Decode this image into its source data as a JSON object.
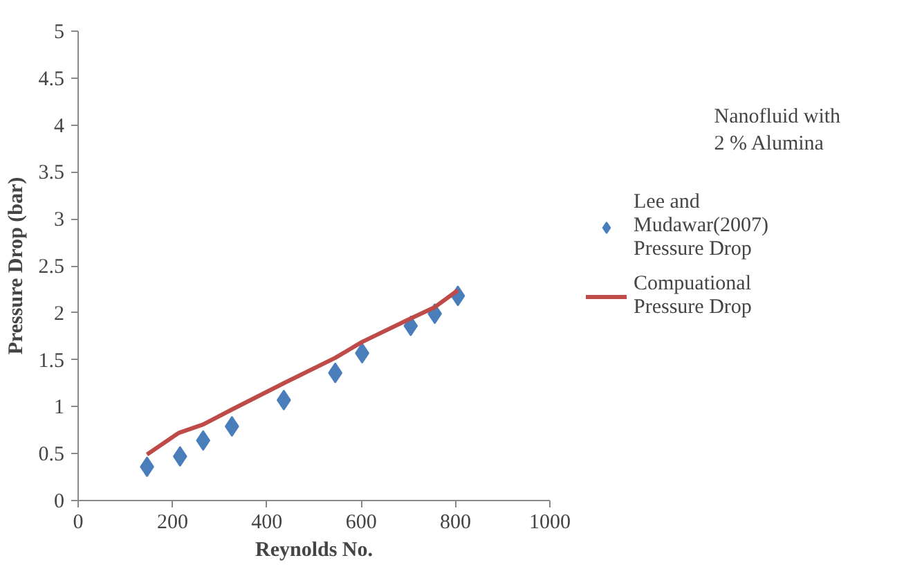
{
  "chart_data": {
    "type": "scatter",
    "xlabel": "Reynolds No.",
    "ylabel": "Pressure Drop (bar)",
    "annotations": [
      "Nanofluid with 2 % Alumina"
    ],
    "series": [
      {
        "name": "Lee and Mudawar(2007) Pressure Drop",
        "marker": "diamond",
        "color": "#4a7ebb",
        "x": [
          146,
          216,
          265,
          326,
          436,
          545,
          602,
          705,
          756,
          805
        ],
        "values": [
          0.36,
          0.47,
          0.64,
          0.79,
          1.07,
          1.36,
          1.57,
          1.86,
          1.99,
          2.18
        ]
      },
      {
        "name": "Compuational Pressure Drop",
        "type": "line",
        "color": "#be4b48",
        "x": [
          146,
          213,
          265,
          326,
          436,
          545,
          602,
          705,
          756,
          805
        ],
        "values": [
          0.49,
          0.72,
          0.81,
          0.97,
          1.25,
          1.52,
          1.69,
          1.94,
          2.06,
          2.24
        ]
      }
    ],
    "xlim": [
      0,
      1000
    ],
    "xticks": [
      0,
      200,
      400,
      600,
      800,
      1000
    ],
    "ylim": [
      0,
      5
    ],
    "yticks": [
      0,
      0.5,
      1,
      1.5,
      2,
      2.5,
      3,
      3.5,
      4,
      4.5,
      5
    ],
    "grid": false,
    "legend": "right"
  }
}
